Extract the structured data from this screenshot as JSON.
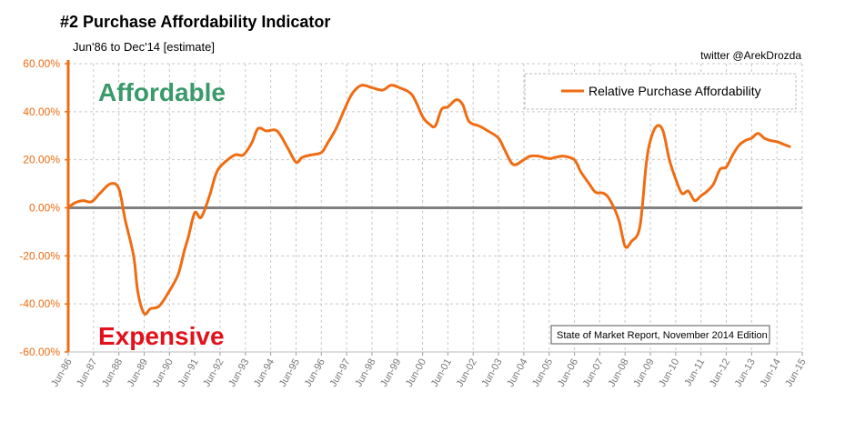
{
  "header": {
    "title": "#2 Purchase Affordability Indicator",
    "subtitle": "Jun'86 to Dec'14 [estimate]",
    "credit": "twitter @ArekDrozda"
  },
  "annotations": {
    "affordable": "Affordable",
    "expensive": "Expensive",
    "report": "State of Market Report, November 2014 Edition"
  },
  "colors": {
    "series": "#ef6c12",
    "affordable": "#3a9a6a",
    "expensive": "#e3111b",
    "zero_line": "#808080",
    "axis": "#ef6c12"
  },
  "chart_data": {
    "type": "line",
    "title": "#2 Purchase Affordability Indicator",
    "subtitle": "Jun'86 to Dec'14 [estimate]",
    "xlabel": "",
    "ylabel": "",
    "x_ticks": [
      "Jun-86",
      "Jun-87",
      "Jun-88",
      "Jun-89",
      "Jun-90",
      "Jun-91",
      "Jun-92",
      "Jun-93",
      "Jun-94",
      "Jun-95",
      "Jun-96",
      "Jun-97",
      "Jun-98",
      "Jun-99",
      "Jun-00",
      "Jun-01",
      "Jun-02",
      "Jun-03",
      "Jun-04",
      "Jun-05",
      "Jun-06",
      "Jun-07",
      "Jun-08",
      "Jun-09",
      "Jun-10",
      "Jun-11",
      "Jun-12",
      "Jun-13",
      "Jun-14",
      "Jun-15"
    ],
    "x_range": [
      "Jun-86",
      "Jun-15"
    ],
    "ylim": [
      -60,
      60
    ],
    "y_ticks": [
      "-60.00%",
      "-40.00%",
      "-20.00%",
      "0.00%",
      "20.00%",
      "40.00%",
      "60.00%"
    ],
    "grid": true,
    "legend_position": "top-right",
    "series": [
      {
        "name": "Relative Purchase Affordability",
        "points": [
          [
            "Jun-86",
            0
          ],
          [
            "Sep-86",
            2
          ],
          [
            "Jan-87",
            3
          ],
          [
            "May-87",
            2.5
          ],
          [
            "Sep-87",
            6
          ],
          [
            "Feb-88",
            10
          ],
          [
            "Jun-88",
            8
          ],
          [
            "Sep-88",
            -5
          ],
          [
            "Jan-89",
            -20
          ],
          [
            "Mar-89",
            -35
          ],
          [
            "Jun-89",
            -44
          ],
          [
            "Sep-89",
            -42
          ],
          [
            "Jan-90",
            -41
          ],
          [
            "May-90",
            -36
          ],
          [
            "Oct-90",
            -28
          ],
          [
            "Jan-91",
            -18
          ],
          [
            "Mar-91",
            -12
          ],
          [
            "Jun-91",
            -2
          ],
          [
            "Sep-91",
            -4
          ],
          [
            "Jan-92",
            5
          ],
          [
            "Apr-92",
            14
          ],
          [
            "Jul-92",
            18
          ],
          [
            "Jan-93",
            22
          ],
          [
            "May-93",
            22
          ],
          [
            "Sep-93",
            27
          ],
          [
            "Dec-93",
            33
          ],
          [
            "Apr-94",
            32
          ],
          [
            "Sep-94",
            32
          ],
          [
            "Feb-95",
            25
          ],
          [
            "Jun-95",
            19
          ],
          [
            "Sep-95",
            21
          ],
          [
            "Jan-96",
            22
          ],
          [
            "Jun-96",
            23
          ],
          [
            "Sep-96",
            27
          ],
          [
            "Jan-97",
            33
          ],
          [
            "Jun-97",
            43
          ],
          [
            "Sep-97",
            48
          ],
          [
            "Jan-98",
            51
          ],
          [
            "Jun-98",
            50
          ],
          [
            "Nov-98",
            49
          ],
          [
            "Mar-99",
            51
          ],
          [
            "Jul-99",
            50
          ],
          [
            "Jan-00",
            47
          ],
          [
            "Jun-00",
            38
          ],
          [
            "Sep-00",
            35
          ],
          [
            "Dec-00",
            34
          ],
          [
            "Mar-01",
            41
          ],
          [
            "Jun-01",
            42
          ],
          [
            "Oct-01",
            45
          ],
          [
            "Jan-02",
            43
          ],
          [
            "Apr-02",
            36
          ],
          [
            "Sep-02",
            34
          ],
          [
            "Jan-03",
            32
          ],
          [
            "Jun-03",
            29
          ],
          [
            "Sep-03",
            24
          ],
          [
            "Jan-04",
            18
          ],
          [
            "Jun-04",
            20
          ],
          [
            "Sep-04",
            21.5
          ],
          [
            "Jan-05",
            21.5
          ],
          [
            "Jun-05",
            20.5
          ],
          [
            "Sep-05",
            21
          ],
          [
            "Jan-06",
            21.5
          ],
          [
            "Jun-06",
            20
          ],
          [
            "Sep-06",
            15
          ],
          [
            "Jan-07",
            10
          ],
          [
            "Apr-07",
            6.5
          ],
          [
            "Aug-07",
            6
          ],
          [
            "Nov-07",
            3
          ],
          [
            "Mar-08",
            -5
          ],
          [
            "Jun-08",
            -16
          ],
          [
            "Sep-08",
            -14
          ],
          [
            "Jan-09",
            -8
          ],
          [
            "Apr-09",
            18
          ],
          [
            "Jun-09",
            28
          ],
          [
            "Sep-09",
            34
          ],
          [
            "Dec-09",
            32
          ],
          [
            "Mar-10",
            20
          ],
          [
            "Jun-10",
            12
          ],
          [
            "Sep-10",
            6
          ],
          [
            "Dec-10",
            7
          ],
          [
            "Mar-11",
            3
          ],
          [
            "Jun-11",
            5
          ],
          [
            "Sep-11",
            7
          ],
          [
            "Dec-11",
            10
          ],
          [
            "Mar-12",
            16
          ],
          [
            "Jun-12",
            17
          ],
          [
            "Sep-12",
            22
          ],
          [
            "Dec-12",
            26
          ],
          [
            "Mar-13",
            28
          ],
          [
            "Jun-13",
            29
          ],
          [
            "Sep-13",
            31
          ],
          [
            "Dec-13",
            29
          ],
          [
            "Mar-14",
            28
          ],
          [
            "Jun-14",
            27.5
          ],
          [
            "Sep-14",
            26.5
          ],
          [
            "Dec-14",
            25.5
          ]
        ]
      }
    ]
  }
}
